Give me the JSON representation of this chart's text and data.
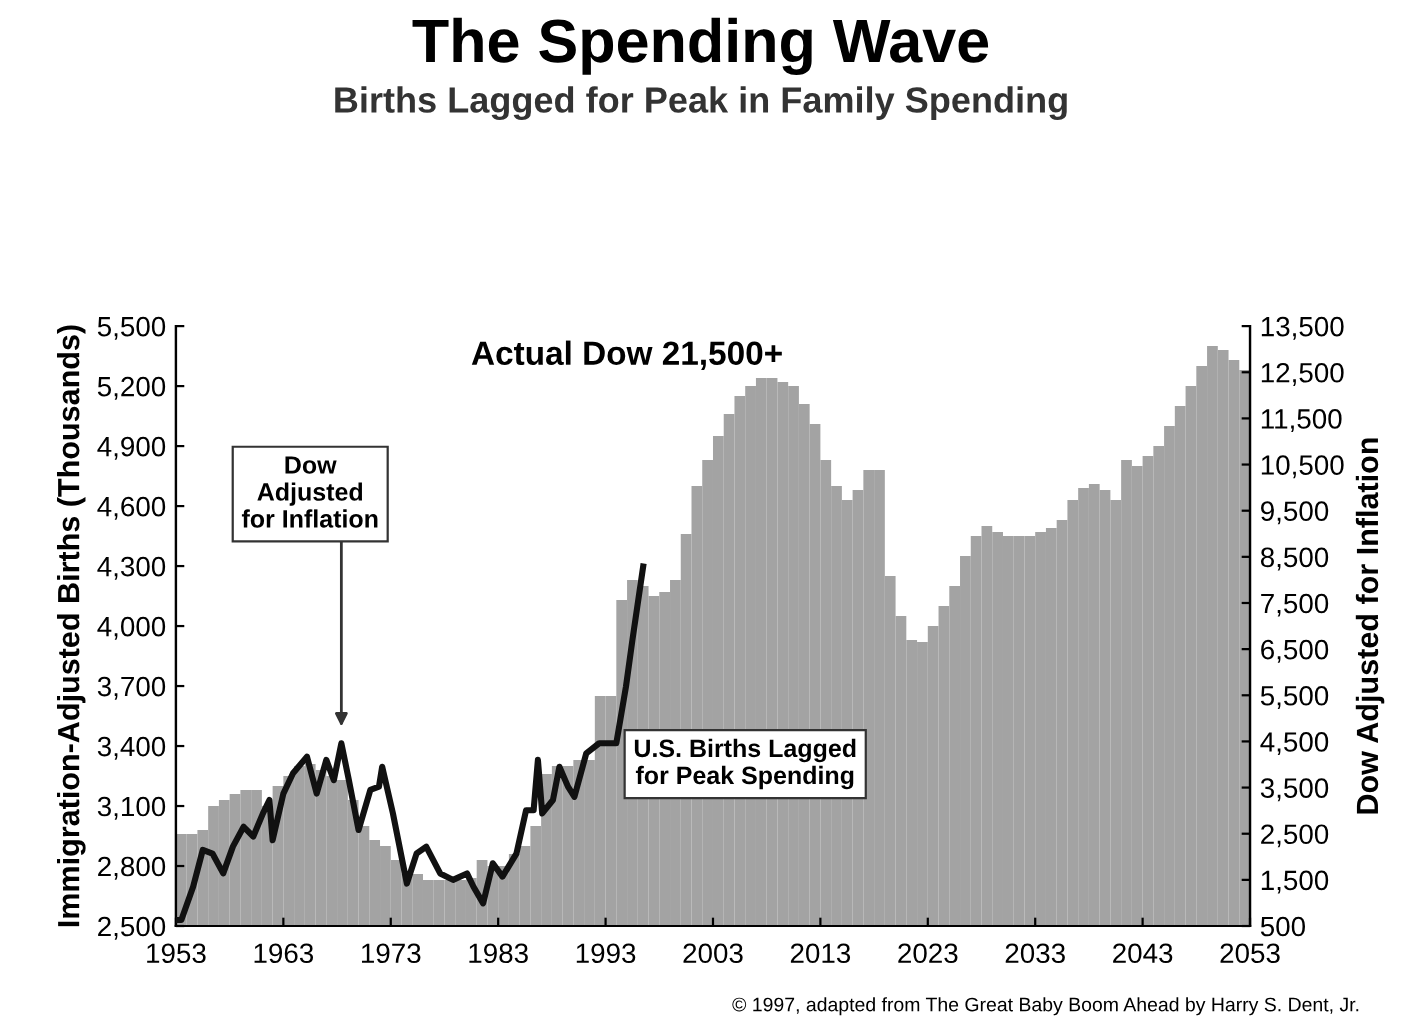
{
  "chart_data": {
    "type": "bar",
    "title": "The Spending Wave",
    "subtitle": "Births Lagged for Peak in Family Spending",
    "ylabel": "Immigration-Adjusted Births (Thousands)",
    "y2label": "Dow Adjusted for Inflation",
    "annotations": [
      "Actual Dow 21,500+",
      "© 1997, adapted from The Great Baby Boom Ahead by Harry S. Dent, Jr."
    ],
    "xlim": [
      1953,
      2053
    ],
    "xticks": [
      1953,
      1963,
      1973,
      1983,
      1993,
      2003,
      2013,
      2023,
      2033,
      2043,
      2053
    ],
    "ylim": [
      2500,
      5500
    ],
    "yticks": [
      {
        "value": 2500,
        "label": "2,500"
      },
      {
        "value": 2800,
        "label": "2,800"
      },
      {
        "value": 3100,
        "label": "3,100"
      },
      {
        "value": 3400,
        "label": "3,400"
      },
      {
        "value": 3700,
        "label": "3,700"
      },
      {
        "value": 4000,
        "label": "4,000"
      },
      {
        "value": 4300,
        "label": "4,300"
      },
      {
        "value": 4600,
        "label": "4,600"
      },
      {
        "value": 4900,
        "label": "4,900"
      },
      {
        "value": 5200,
        "label": "5,200"
      },
      {
        "value": 5500,
        "label": "5,500"
      }
    ],
    "y2lim": [
      500,
      13500
    ],
    "y2ticks": [
      500,
      {
        "value": 1500,
        "label": "1,500"
      },
      {
        "value": 2500,
        "label": "2,500"
      },
      {
        "value": 3500,
        "label": "3,500"
      },
      {
        "value": 4500,
        "label": "4,500"
      },
      {
        "value": 5500,
        "label": "5,500"
      },
      {
        "value": 6500,
        "label": "6,500"
      },
      {
        "value": 7500,
        "label": "7,500"
      },
      {
        "value": 8500,
        "label": "8,500"
      },
      {
        "value": 9500,
        "label": "9,500"
      },
      {
        "value": 10500,
        "label": "10,500"
      },
      {
        "value": 11500,
        "label": "11,500"
      },
      {
        "value": 12500,
        "label": "12,500"
      },
      {
        "value": 13500,
        "label": "13,500"
      }
    ],
    "grid": false,
    "legend": false,
    "series": [
      {
        "name": "U.S. Births Lagged for Peak Spending",
        "color": "#a3a3a3",
        "x": [
          1953,
          1954,
          1955,
          1956,
          1957,
          1958,
          1959,
          1960,
          1961,
          1962,
          1963,
          1964,
          1965,
          1966,
          1967,
          1968,
          1969,
          1970,
          1971,
          1972,
          1973,
          1974,
          1975,
          1976,
          1977,
          1978,
          1979,
          1980,
          1981,
          1982,
          1983,
          1984,
          1985,
          1986,
          1987,
          1988,
          1989,
          1990,
          1991,
          1992,
          1993,
          1994,
          1995,
          1996,
          1997,
          1998,
          1999,
          2000,
          2001,
          2002,
          2003,
          2004,
          2005,
          2006,
          2007,
          2008,
          2009,
          2010,
          2011,
          2012,
          2013,
          2014,
          2015,
          2016,
          2017,
          2018,
          2019,
          2020,
          2021,
          2022,
          2023,
          2024,
          2025,
          2026,
          2027,
          2028,
          2029,
          2030,
          2031,
          2032,
          2033,
          2034,
          2035,
          2036,
          2037,
          2038,
          2039,
          2040,
          2041,
          2042,
          2043,
          2044,
          2045,
          2046,
          2047,
          2048,
          2049,
          2050,
          2051,
          2052
        ],
        "values": [
          2960,
          2960,
          2980,
          3100,
          3130,
          3160,
          3180,
          3180,
          3100,
          3200,
          3250,
          3300,
          3310,
          3280,
          3250,
          3230,
          3130,
          3000,
          2930,
          2900,
          2830,
          2760,
          2760,
          2730,
          2730,
          2730,
          2730,
          2740,
          2830,
          2800,
          2800,
          2860,
          2900,
          3000,
          3260,
          3300,
          3300,
          3330,
          3330,
          3650,
          3650,
          4130,
          4230,
          4200,
          4150,
          4170,
          4230,
          4460,
          4700,
          4830,
          4950,
          5060,
          5150,
          5200,
          5240,
          5240,
          5220,
          5200,
          5110,
          5010,
          4830,
          4700,
          4630,
          4680,
          4780,
          4780,
          4250,
          4050,
          3930,
          3920,
          4000,
          4100,
          4200,
          4350,
          4450,
          4500,
          4470,
          4450,
          4450,
          4450,
          4470,
          4490,
          4530,
          4630,
          4690,
          4710,
          4680,
          4630,
          4830,
          4800,
          4850,
          4900,
          5000,
          5100,
          5200,
          5300,
          5400,
          5380,
          5330,
          5280
        ]
      },
      {
        "name": "Dow Adjusted for Inflation",
        "type": "line",
        "axis": "y2",
        "color": "#111111",
        "line_style": "solid",
        "marker": "none",
        "x": [
          1953,
          1953.5,
          1954.6,
          1955.5,
          1956.4,
          1957.4,
          1958.3,
          1959.3,
          1960.2,
          1961.1,
          1961.7,
          1962.0,
          1963.0,
          1963.9,
          1965.2,
          1966.1,
          1967.0,
          1967.7,
          1968.4,
          1969.1,
          1970.0,
          1971.1,
          1971.9,
          1972.2,
          1973.2,
          1974.5,
          1975.4,
          1976.3,
          1977.6,
          1978.8,
          1980.1,
          1980.7,
          1981.6,
          1982.5,
          1983.4,
          1984.7,
          1985.6,
          1986.3,
          1986.7,
          1987.1,
          1988.1,
          1988.7,
          1989.5,
          1990.1,
          1991.2,
          1992.4,
          1994.0,
          1994.9,
          1995.5,
          1996.5
        ],
        "values": [
          630,
          630,
          1350,
          2150,
          2070,
          1640,
          2220,
          2650,
          2440,
          2940,
          3230,
          2360,
          3370,
          3810,
          4170,
          3370,
          4100,
          3660,
          4460,
          3660,
          2580,
          3450,
          3520,
          3950,
          2940,
          1420,
          2070,
          2220,
          1640,
          1500,
          1640,
          1350,
          990,
          1860,
          1570,
          2070,
          3010,
          3010,
          4100,
          2940,
          3230,
          3950,
          3520,
          3300,
          4240,
          4460,
          4460,
          5690,
          6700,
          8290
        ]
      }
    ]
  }
}
